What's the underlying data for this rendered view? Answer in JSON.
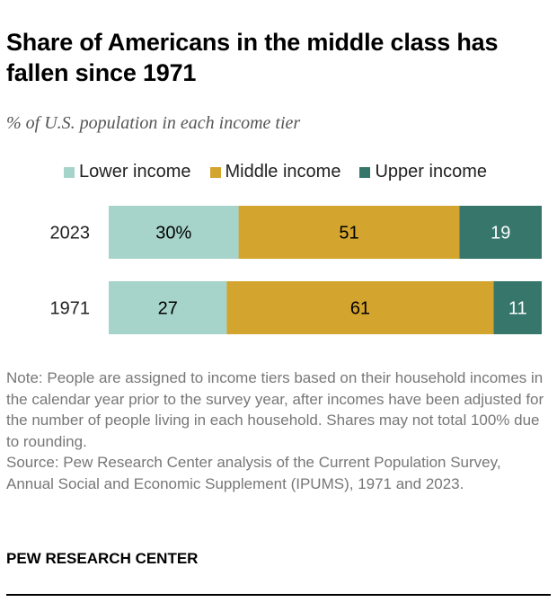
{
  "title": "Share of Americans in the middle class has fallen since 1971",
  "subtitle": "% of U.S. population in each income tier",
  "note": "Note: People are assigned to income tiers based on their household incomes in the calendar year prior to the survey year, after incomes have been adjusted for the number of people living in each household. Shares may not total 100% due to rounding.",
  "source": "Source: Pew Research Center analysis of the Current Population Survey, Annual Social and Economic Supplement (IPUMS), 1971 and 2023.",
  "brand": "PEW RESEARCH CENTER",
  "chart_data": {
    "type": "bar",
    "orientation": "horizontal-stacked",
    "categories": [
      "2023",
      "1971"
    ],
    "series": [
      {
        "name": "Lower income",
        "values": [
          30,
          27
        ],
        "labels": [
          "30%",
          "27"
        ],
        "color": "#a6d4ca",
        "label_color": "#000000"
      },
      {
        "name": "Middle income",
        "values": [
          51,
          61
        ],
        "labels": [
          "51",
          "61"
        ],
        "color": "#d3a52f",
        "label_color": "#000000"
      },
      {
        "name": "Upper income",
        "values": [
          19,
          11
        ],
        "labels": [
          "19",
          "11"
        ],
        "color": "#37776b",
        "label_color": "#ffffff"
      }
    ],
    "legend": "top"
  }
}
